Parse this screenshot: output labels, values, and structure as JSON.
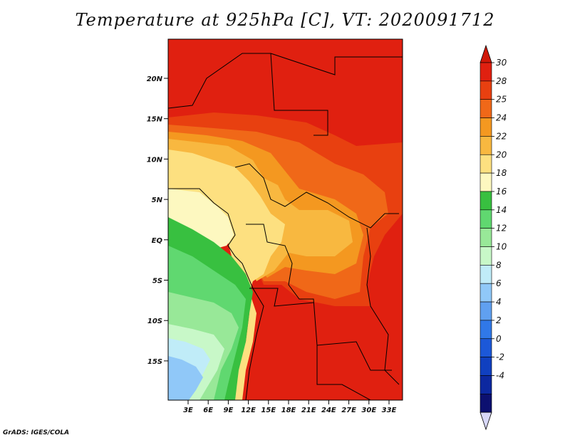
{
  "title": "Temperature at 925hPa [C], VT: 2020091712",
  "credit": "GrADS: IGES/COLA",
  "lat_labels": [
    "20N",
    "15N",
    "10N",
    "5N",
    "EQ",
    "5S",
    "10S",
    "15S"
  ],
  "lon_labels": [
    "3E",
    "6E",
    "9E",
    "12E",
    "15E",
    "18E",
    "21E",
    "24E",
    "27E",
    "30E",
    "33E"
  ],
  "colorbar": {
    "labels": [
      "30",
      "28",
      "25",
      "24",
      "22",
      "20",
      "18",
      "16",
      "14",
      "12",
      "10",
      "8",
      "6",
      "4",
      "2",
      "0",
      "-2",
      "-4"
    ],
    "colors": [
      "#e02010",
      "#e84010",
      "#f06818",
      "#f49820",
      "#f8b840",
      "#fde080",
      "#fdf8c0",
      "#38c040",
      "#60d870",
      "#98e898",
      "#c8f8c8",
      "#c0ecf8",
      "#90c8f8",
      "#60a0f0",
      "#3078e8",
      "#1c58d8",
      "#1040c0",
      "#0c28a0",
      "#0c1070"
    ],
    "top_arrow_color": "#d01808",
    "bottom_arrow_color": "#d8d8f8"
  },
  "map_colors": {
    "hot": "#e02010",
    "warm": "#e84010",
    "orange": "#f06818",
    "amber": "#f49820",
    "lightorange": "#f8b840",
    "yellow": "#fde080",
    "cream": "#fdf8c0",
    "green": "#38c040",
    "midgreen": "#60d870",
    "lightgreen": "#98e898",
    "palegreen": "#c8f8c8",
    "paleblue": "#c0ecf8",
    "lightblue": "#90c8f8"
  }
}
